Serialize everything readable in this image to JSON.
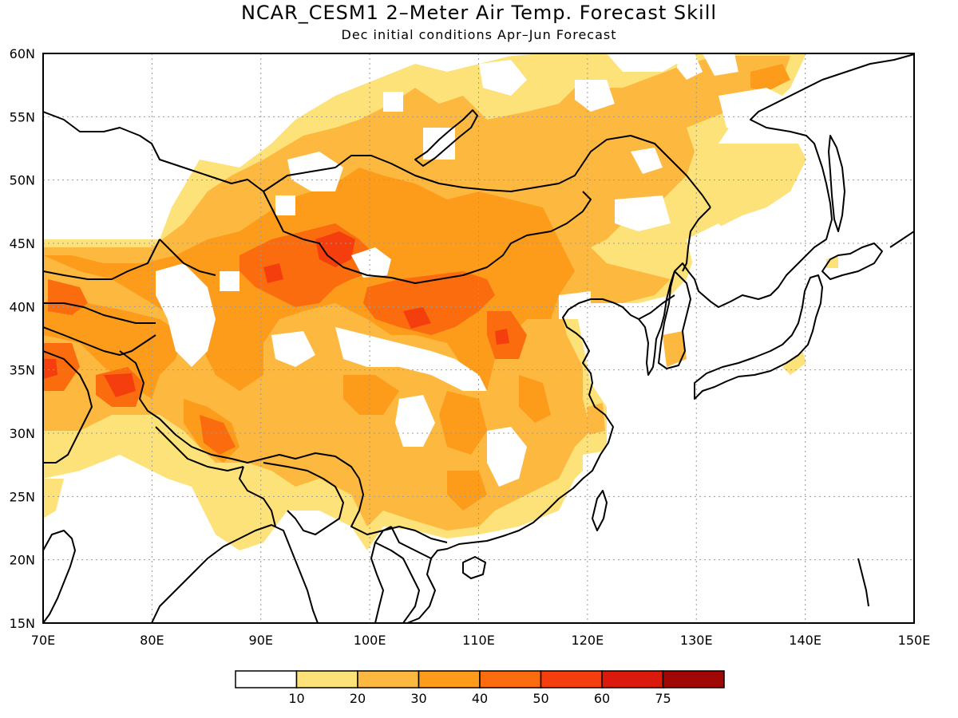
{
  "header": {
    "title": "NCAR_CESM1 2–Meter Air Temp. Forecast Skill",
    "subtitle": "Dec initial conditions  Apr–Jun Forecast"
  },
  "map": {
    "lon_range": [
      70,
      150
    ],
    "lat_range": [
      15,
      60
    ],
    "lon_ticks": [
      {
        "value": 70,
        "label": "70E"
      },
      {
        "value": 80,
        "label": "80E"
      },
      {
        "value": 90,
        "label": "90E"
      },
      {
        "value": 100,
        "label": "100E"
      },
      {
        "value": 110,
        "label": "110E"
      },
      {
        "value": 120,
        "label": "120E"
      },
      {
        "value": 130,
        "label": "130E"
      },
      {
        "value": 140,
        "label": "140E"
      },
      {
        "value": 150,
        "label": "150E"
      }
    ],
    "lat_ticks": [
      {
        "value": 15,
        "label": "15N"
      },
      {
        "value": 20,
        "label": "20N"
      },
      {
        "value": 25,
        "label": "25N"
      },
      {
        "value": 30,
        "label": "30N"
      },
      {
        "value": 35,
        "label": "35N"
      },
      {
        "value": 40,
        "label": "40N"
      },
      {
        "value": 45,
        "label": "45N"
      },
      {
        "value": 50,
        "label": "50N"
      },
      {
        "value": 55,
        "label": "55N"
      },
      {
        "value": 60,
        "label": "60N"
      }
    ],
    "grid": true
  },
  "colorbar": {
    "colors": [
      "#ffffff",
      "#fde27a",
      "#fdb83f",
      "#fd9b1a",
      "#fb6c0f",
      "#f53e0e",
      "#d91a0c",
      "#a00805"
    ],
    "labels": [
      "10",
      "20",
      "30",
      "40",
      "50",
      "60",
      "75"
    ]
  }
}
